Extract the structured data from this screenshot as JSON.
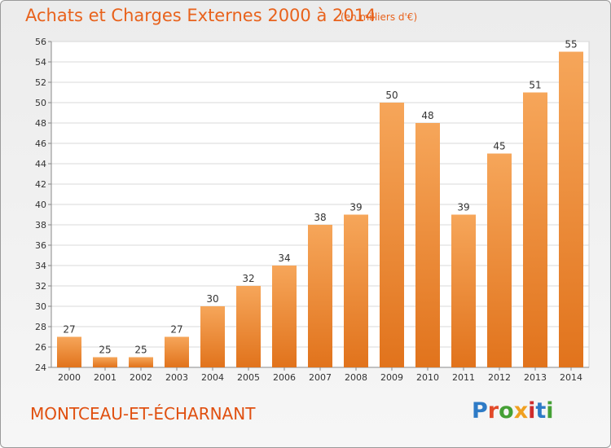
{
  "header": {
    "title": "Achats et Charges Externes 2000 à 2014",
    "subtitle": "(en milliers d'€)"
  },
  "footer": {
    "commune": "MONTCEAU-ET-ÉCHARNANT",
    "logo_text": "Proxiti"
  },
  "colors": {
    "bar_top": "#f6a65a",
    "bar_bottom": "#e1731c",
    "title": "#e8621c",
    "logo_letters": [
      "#2e7bc6",
      "#e24a2a",
      "#45a035",
      "#f0a020",
      "#cf2c2c",
      "#2e7bc6",
      "#45a035"
    ]
  },
  "chart_data": {
    "type": "bar",
    "title": "Achats et Charges Externes 2000 à 2014",
    "subtitle": "(en milliers d'€)",
    "categories": [
      "2000",
      "2001",
      "2002",
      "2003",
      "2004",
      "2005",
      "2006",
      "2007",
      "2008",
      "2009",
      "2010",
      "2011",
      "2012",
      "2013",
      "2014"
    ],
    "values": [
      27,
      25,
      25,
      27,
      30,
      32,
      34,
      38,
      39,
      50,
      48,
      39,
      45,
      51,
      55
    ],
    "ylim": [
      24,
      56
    ],
    "yticks": [
      24,
      26,
      28,
      30,
      32,
      34,
      36,
      38,
      40,
      42,
      44,
      46,
      48,
      50,
      52,
      54,
      56
    ],
    "grid": true,
    "xlabel": "",
    "ylabel": ""
  }
}
